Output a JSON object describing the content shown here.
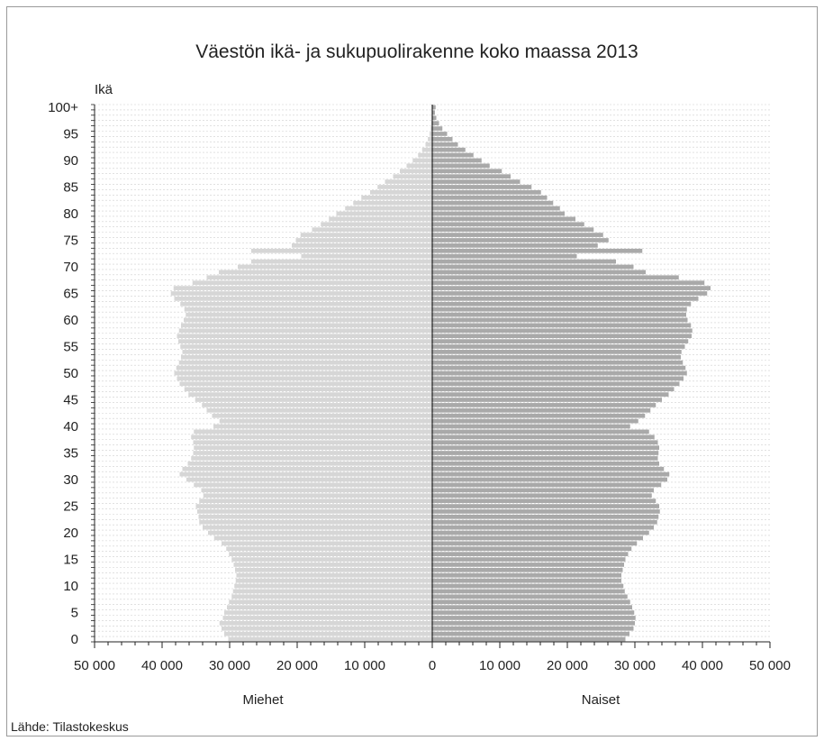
{
  "chart_data": {
    "type": "bar",
    "orientation": "horizontal",
    "layout": "population-pyramid",
    "title": "Väestön ikä- ja sukupuolirakenne koko maassa 2013",
    "ylabel": "Ikä",
    "xlim": [
      -50000,
      50000
    ],
    "x_tick_labels": [
      "50 000",
      "40 000",
      "30 000",
      "20 000",
      "10 000",
      "0",
      "10 000",
      "20 000",
      "30 000",
      "40 000",
      "50 000"
    ],
    "y_tick_labels": [
      "0",
      "5",
      "10",
      "15",
      "20",
      "25",
      "30",
      "35",
      "40",
      "45",
      "50",
      "55",
      "60",
      "65",
      "70",
      "75",
      "80",
      "85",
      "90",
      "95",
      "100+"
    ],
    "grid": "horizontal",
    "source": "Lähde: Tilastokeskus",
    "categories": [
      "0",
      "1",
      "2",
      "3",
      "4",
      "5",
      "6",
      "7",
      "8",
      "9",
      "10",
      "11",
      "12",
      "13",
      "14",
      "15",
      "16",
      "17",
      "18",
      "19",
      "20",
      "21",
      "22",
      "23",
      "24",
      "25",
      "26",
      "27",
      "28",
      "29",
      "30",
      "31",
      "32",
      "33",
      "34",
      "35",
      "36",
      "37",
      "38",
      "39",
      "40",
      "41",
      "42",
      "43",
      "44",
      "45",
      "46",
      "47",
      "48",
      "49",
      "50",
      "51",
      "52",
      "53",
      "54",
      "55",
      "56",
      "57",
      "58",
      "59",
      "60",
      "61",
      "62",
      "63",
      "64",
      "65",
      "66",
      "67",
      "68",
      "69",
      "70",
      "71",
      "72",
      "73",
      "74",
      "75",
      "76",
      "77",
      "78",
      "79",
      "80",
      "81",
      "82",
      "83",
      "84",
      "85",
      "86",
      "87",
      "88",
      "89",
      "90",
      "91",
      "92",
      "93",
      "94",
      "95",
      "96",
      "97",
      "98",
      "99",
      "100+"
    ],
    "series": [
      {
        "name": "Miehet",
        "color": "#d6d6d6",
        "values": [
          30200,
          30800,
          31200,
          31500,
          31000,
          30800,
          30400,
          30100,
          29700,
          29500,
          29300,
          29100,
          29000,
          29200,
          29400,
          29700,
          30100,
          30500,
          31200,
          32300,
          33200,
          34000,
          34500,
          34600,
          34800,
          35000,
          34500,
          33900,
          34200,
          35300,
          36400,
          37400,
          37000,
          36200,
          35700,
          35400,
          35300,
          35400,
          35700,
          35300,
          32400,
          31500,
          32600,
          33400,
          34100,
          35100,
          36100,
          36700,
          37400,
          37800,
          38200,
          37900,
          37500,
          37200,
          37000,
          37300,
          37600,
          37800,
          37500,
          37200,
          36800,
          36500,
          36700,
          37300,
          38200,
          38700,
          38300,
          35500,
          33400,
          31600,
          28800,
          26800,
          19400,
          26800,
          20800,
          20200,
          19500,
          17800,
          16500,
          15300,
          14200,
          12900,
          11700,
          10500,
          9200,
          8100,
          7000,
          5800,
          4800,
          3800,
          2900,
          2100,
          1500,
          1000,
          650,
          400,
          250,
          150,
          90,
          50,
          60
        ]
      },
      {
        "name": "Naiset",
        "color": "#a9a9a9",
        "values": [
          28600,
          29200,
          29800,
          30000,
          30100,
          29900,
          29600,
          29300,
          28900,
          28500,
          28300,
          28000,
          28000,
          28200,
          28400,
          28600,
          29000,
          29500,
          30300,
          31200,
          32100,
          32800,
          33300,
          33500,
          33700,
          33600,
          33100,
          32500,
          32800,
          33900,
          34800,
          35100,
          34300,
          33600,
          33400,
          33500,
          33600,
          33400,
          32900,
          32100,
          29300,
          30500,
          31500,
          32300,
          33100,
          34000,
          35000,
          35800,
          36600,
          37200,
          37700,
          37500,
          37100,
          36800,
          36900,
          37400,
          37900,
          38400,
          38500,
          38300,
          37800,
          37600,
          37700,
          38300,
          39400,
          40700,
          41200,
          40300,
          36500,
          31600,
          29800,
          27200,
          21400,
          31100,
          24500,
          26100,
          25300,
          23900,
          22500,
          21200,
          19600,
          18900,
          17900,
          17000,
          16100,
          14700,
          13000,
          11600,
          10300,
          8500,
          7300,
          6100,
          4900,
          3800,
          3000,
          2200,
          1500,
          1000,
          600,
          400,
          500
        ]
      }
    ]
  }
}
